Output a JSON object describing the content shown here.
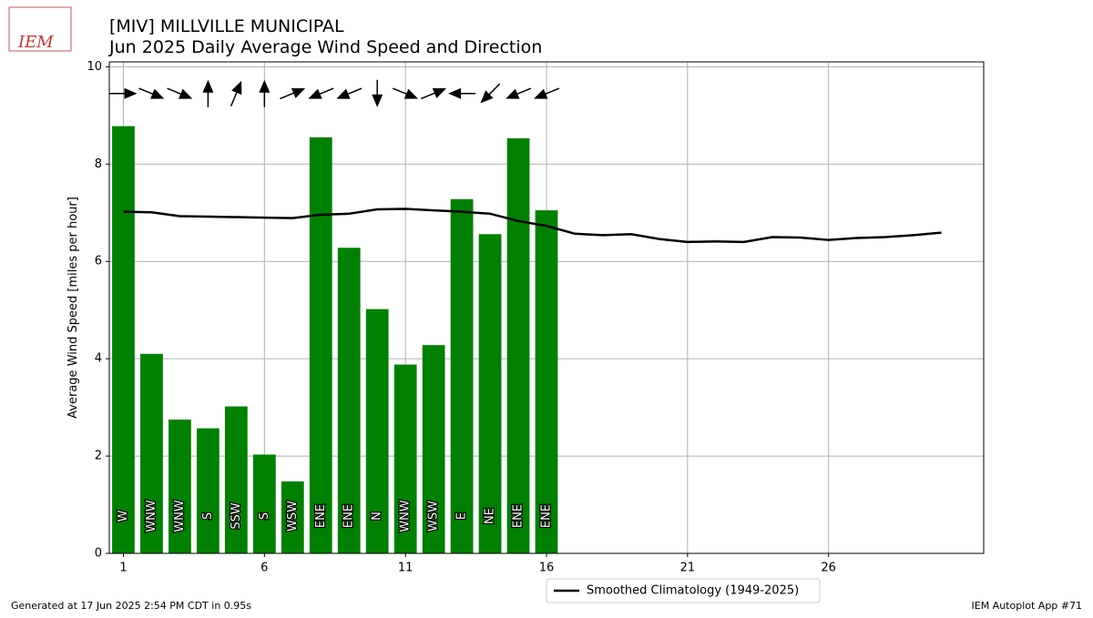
{
  "logo": "IEM",
  "footer_left": "Generated at 17 Jun 2025 2:54 PM CDT in 0.95s",
  "footer_right": "IEM Autoplot App #71",
  "chart_data": {
    "type": "bar",
    "title": "[MIV] MILLVILLE MUNICIPAL",
    "subtitle": "Jun 2025 Daily Average Wind Speed and Direction",
    "y_label": "Average Wind Speed [miles per hour]",
    "x": [
      1,
      2,
      3,
      4,
      5,
      6,
      7,
      8,
      9,
      10,
      11,
      12,
      13,
      14,
      15,
      16
    ],
    "values": [
      8.78,
      4.1,
      2.75,
      2.57,
      3.02,
      2.03,
      1.48,
      8.55,
      6.28,
      5.02,
      3.88,
      4.28,
      7.28,
      6.56,
      8.53,
      7.05
    ],
    "color": "#008000",
    "direction_labels": [
      "W",
      "WNW",
      "WNW",
      "S",
      "SSW",
      "S",
      "WSW",
      "ENE",
      "ENE",
      "N",
      "WNW",
      "WSW",
      "E",
      "NE",
      "ENE",
      "ENE"
    ],
    "direction_deg": [
      270,
      292.5,
      292.5,
      180,
      202.5,
      180,
      247.5,
      67.5,
      67.5,
      0,
      292.5,
      247.5,
      90,
      45,
      67.5,
      67.5
    ],
    "climatology": {
      "name": "Smoothed Climatology (1949-2025)",
      "color": "#000000",
      "x": [
        1,
        2,
        3,
        4,
        5,
        6,
        7,
        8,
        9,
        10,
        11,
        12,
        13,
        14,
        15,
        16,
        17,
        18,
        19,
        20,
        21,
        22,
        23,
        24,
        25,
        26,
        27,
        28,
        29,
        30
      ],
      "values": [
        7.02,
        7.01,
        6.93,
        6.92,
        6.91,
        6.9,
        6.89,
        6.96,
        6.98,
        7.07,
        7.08,
        7.05,
        7.02,
        6.98,
        6.83,
        6.73,
        6.57,
        6.54,
        6.56,
        6.46,
        6.4,
        6.41,
        6.4,
        6.5,
        6.49,
        6.44,
        6.48,
        6.5,
        6.54,
        6.59
      ]
    },
    "xlim": [
      0.5,
      31.5
    ],
    "xticks": [
      1,
      6,
      11,
      16,
      21,
      26
    ],
    "ylim": [
      0,
      10.1
    ],
    "yticks": [
      0,
      2,
      4,
      6,
      8,
      10
    ],
    "grid": true,
    "legend": "lower center"
  }
}
